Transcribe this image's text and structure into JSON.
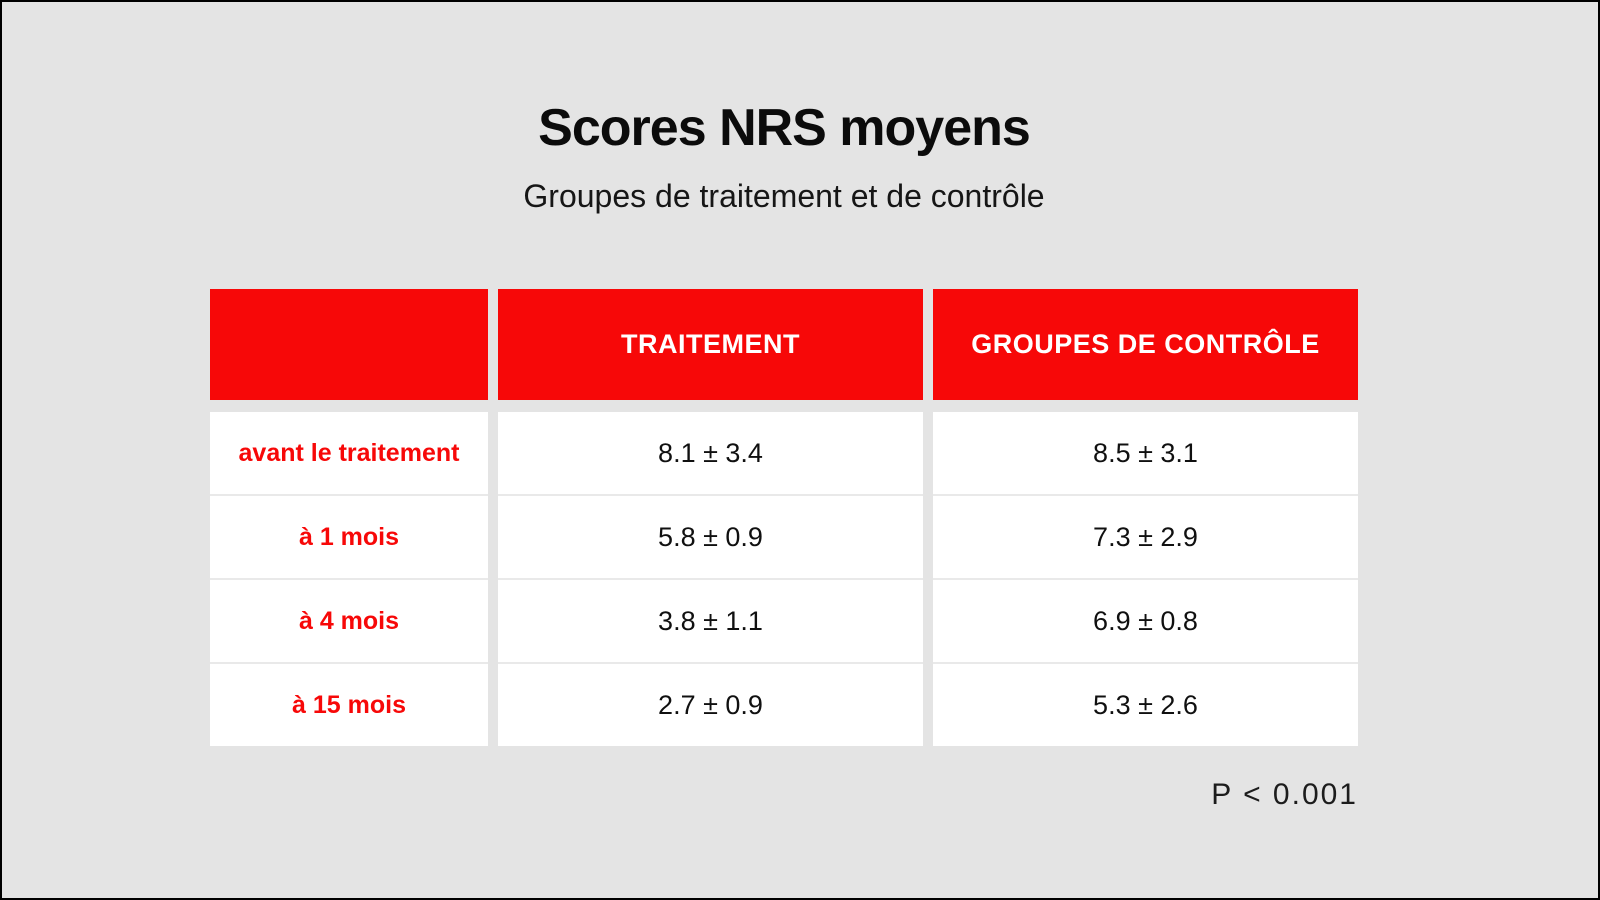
{
  "chart_data": {
    "type": "table",
    "title": "Scores NRS moyens",
    "subtitle": "Groupes de traitement et de contrôle",
    "columns": [
      "",
      "TRAITEMENT",
      "GROUPES DE CONTRÔLE"
    ],
    "rows": [
      [
        "avant le traitement",
        "8.1 ± 3.4",
        "8.5 ± 3.1"
      ],
      [
        "à 1 mois",
        "5.8 ± 0.9",
        "7.3 ± 2.9"
      ],
      [
        "à 4 mois",
        "3.8 ± 1.1",
        "6.9 ± 0.8"
      ],
      [
        "à 15 mois",
        "2.7 ± 0.9",
        "5.3 ± 2.6"
      ]
    ],
    "annotation": "P < 0.001",
    "legend_position": "none",
    "grid": false
  },
  "colors": {
    "accent_red": "#F70808",
    "background": "#E4E4E4",
    "cell_white": "#FFFFFF",
    "header_text": "#FFFFFF",
    "value_text": "#101010",
    "frame_border": "#000000"
  }
}
